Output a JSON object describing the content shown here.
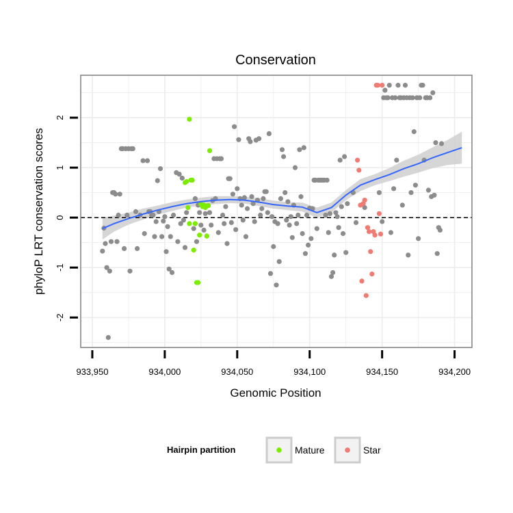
{
  "chart_data": {
    "type": "scatter",
    "title": "Conservation",
    "xlabel": "Genomic Position",
    "ylabel": "phyloP LRT conservation scores",
    "xlim": [
      933942,
      934212
    ],
    "ylim": [
      -2.6,
      2.85
    ],
    "xticks": [
      933950,
      934000,
      934050,
      934100,
      934150,
      934200
    ],
    "xtick_labels": [
      "933,950",
      "934,000",
      "934,050",
      "934,100",
      "934,150",
      "934,200"
    ],
    "yticks": [
      -2,
      -1,
      0,
      1,
      2
    ],
    "ytick_labels": [
      "-2",
      "-1",
      "0",
      "1",
      "2"
    ],
    "grid": true,
    "reference_line": {
      "y": 0,
      "style": "dashed"
    },
    "colors": {
      "other": "#8c8c8c",
      "mature": "#7cec00",
      "star": "#f07b72",
      "smooth": "#3366ff",
      "band": "#cfcfcf",
      "panel_bg": "#ffffff",
      "grid": "#ececec",
      "border": "#7f7f7f"
    },
    "legend": {
      "title": "Hairpin partition",
      "placement": "bottom",
      "entries": [
        {
          "label": "Mature",
          "color": "#7cec00"
        },
        {
          "label": "Star",
          "color": "#f07b72"
        }
      ]
    },
    "series": [
      {
        "key": "other",
        "points": [
          [
            933957,
            -0.67
          ],
          [
            933958,
            -0.21
          ],
          [
            933959,
            -0.52
          ],
          [
            933960,
            -1.0
          ],
          [
            933961,
            -2.4
          ],
          [
            933962,
            -1.07
          ],
          [
            933963,
            -0.48
          ],
          [
            933964,
            0.5
          ],
          [
            933965,
            0.5
          ],
          [
            933966,
            0.47
          ],
          [
            933967,
            -0.48
          ],
          [
            933968,
            0.05
          ],
          [
            933969,
            0.47
          ],
          [
            933970,
            1.38
          ],
          [
            933971,
            1.38
          ],
          [
            933972,
            -0.62
          ],
          [
            933973,
            1.38
          ],
          [
            933974,
            0.05
          ],
          [
            933975,
            1.38
          ],
          [
            933976,
            -1.07
          ],
          [
            933977,
            1.38
          ],
          [
            933978,
            1.38
          ],
          [
            933980,
            0.12
          ],
          [
            933981,
            -0.62
          ],
          [
            933983,
            0.05
          ],
          [
            933985,
            1.14
          ],
          [
            933986,
            -0.32
          ],
          [
            933988,
            1.14
          ],
          [
            933989,
            0.12
          ],
          [
            933990,
            0.12
          ],
          [
            933991,
            0.05
          ],
          [
            933992,
            0.05
          ],
          [
            933993,
            -0.38
          ],
          [
            933994,
            -0.08
          ],
          [
            933995,
            0.74
          ],
          [
            933996,
            0.12
          ],
          [
            933997,
            0.98
          ],
          [
            933998,
            -0.38
          ],
          [
            933999,
            -0.07
          ],
          [
            934000,
            0.02
          ],
          [
            934001,
            -0.68
          ],
          [
            934002,
            -0.18
          ],
          [
            934003,
            -1.03
          ],
          [
            934004,
            -0.38
          ],
          [
            934005,
            -1.1
          ],
          [
            934006,
            0.05
          ],
          [
            934008,
            0.9
          ],
          [
            934009,
            -0.48
          ],
          [
            934010,
            0.87
          ],
          [
            934011,
            -0.12
          ],
          [
            934012,
            0.79
          ],
          [
            934013,
            -0.05
          ],
          [
            934014,
            -0.6
          ],
          [
            934015,
            0.1
          ],
          [
            934020,
            -0.22
          ],
          [
            934021,
            0.38
          ],
          [
            934022,
            -0.48
          ],
          [
            934023,
            0.25
          ],
          [
            934024,
            0.1
          ],
          [
            934025,
            -0.15
          ],
          [
            934027,
            -0.25
          ],
          [
            934028,
            0.08
          ],
          [
            934029,
            -0.37
          ],
          [
            934030,
            0.24
          ],
          [
            934031,
            0.1
          ],
          [
            934032,
            -0.15
          ],
          [
            934033,
            0.34
          ],
          [
            934034,
            1.18
          ],
          [
            934035,
            0.38
          ],
          [
            934036,
            1.18
          ],
          [
            934037,
            -0.3
          ],
          [
            934038,
            1.18
          ],
          [
            934039,
            1.18
          ],
          [
            934040,
            0.05
          ],
          [
            934041,
            -0.12
          ],
          [
            934042,
            0.22
          ],
          [
            934043,
            -0.52
          ],
          [
            934044,
            0.78
          ],
          [
            934045,
            0.78
          ],
          [
            934046,
            -0.1
          ],
          [
            934047,
            0.47
          ],
          [
            934048,
            1.82
          ],
          [
            934049,
            -0.24
          ],
          [
            934050,
            0.58
          ],
          [
            934051,
            1.56
          ],
          [
            934052,
            0.38
          ],
          [
            934053,
            0.25
          ],
          [
            934054,
            -0.05
          ],
          [
            934055,
            0.4
          ],
          [
            934056,
            -0.38
          ],
          [
            934057,
            0.18
          ],
          [
            934058,
            1.58
          ],
          [
            934059,
            1.52
          ],
          [
            934060,
            0.42
          ],
          [
            934061,
            0.28
          ],
          [
            934062,
            -0.08
          ],
          [
            934063,
            1.55
          ],
          [
            934064,
            0.35
          ],
          [
            934065,
            1.58
          ],
          [
            934066,
            0.05
          ],
          [
            934067,
            0.18
          ],
          [
            934068,
            0.38
          ],
          [
            934069,
            0.52
          ],
          [
            934070,
            0.52
          ],
          [
            934071,
            0.1
          ],
          [
            934072,
            1.68
          ],
          [
            934073,
            -1.12
          ],
          [
            934074,
            0.02
          ],
          [
            934075,
            -0.58
          ],
          [
            934076,
            -0.08
          ],
          [
            934077,
            -1.35
          ],
          [
            934078,
            -0.12
          ],
          [
            934079,
            -0.88
          ],
          [
            934080,
            0.38
          ],
          [
            934081,
            1.36
          ],
          [
            934082,
            1.22
          ],
          [
            934083,
            0.5
          ],
          [
            934084,
            -0.05
          ],
          [
            934085,
            0.32
          ],
          [
            934086,
            -0.15
          ],
          [
            934087,
            0.02
          ],
          [
            934088,
            -0.4
          ],
          [
            934089,
            0.25
          ],
          [
            934090,
            1.0
          ],
          [
            934091,
            -0.12
          ],
          [
            934092,
            0.05
          ],
          [
            934093,
            1.36
          ],
          [
            934094,
            0.42
          ],
          [
            934095,
            -0.32
          ],
          [
            934096,
            1.4
          ],
          [
            934097,
            -0.72
          ],
          [
            934098,
            0.05
          ],
          [
            934099,
            -0.55
          ],
          [
            934100,
            0.19
          ],
          [
            934101,
            -0.42
          ],
          [
            934102,
            0.18
          ],
          [
            934103,
            0.75
          ],
          [
            934104,
            0.75
          ],
          [
            934105,
            -0.22
          ],
          [
            934106,
            0.75
          ],
          [
            934107,
            0.75
          ],
          [
            934108,
            0.75
          ],
          [
            934109,
            0.75
          ],
          [
            934110,
            0.75
          ],
          [
            934111,
            0.05
          ],
          [
            934112,
            0.75
          ],
          [
            934113,
            -0.3
          ],
          [
            934114,
            0.08
          ],
          [
            934115,
            -1.18
          ],
          [
            934116,
            -1.1
          ],
          [
            934117,
            -0.75
          ],
          [
            934118,
            0.1
          ],
          [
            934119,
            0.02
          ],
          [
            934120,
            -0.2
          ],
          [
            934121,
            1.15
          ],
          [
            934122,
            0.22
          ],
          [
            934123,
            -0.32
          ],
          [
            934124,
            1.22
          ],
          [
            934125,
            -0.7
          ],
          [
            934126,
            0.28
          ],
          [
            934130,
            0.5
          ],
          [
            934132,
            -0.1
          ],
          [
            934138,
            0.2
          ],
          [
            934148,
            0.5
          ],
          [
            934150,
            -0.08
          ],
          [
            934151,
            2.4
          ],
          [
            934152,
            2.55
          ],
          [
            934153,
            2.4
          ],
          [
            934154,
            2.4
          ],
          [
            934155,
            2.65
          ],
          [
            934156,
            -0.3
          ],
          [
            934157,
            2.4
          ],
          [
            934158,
            0.58
          ],
          [
            934159,
            2.4
          ],
          [
            934160,
            1.15
          ],
          [
            934161,
            2.65
          ],
          [
            934162,
            2.4
          ],
          [
            934163,
            2.4
          ],
          [
            934164,
            0.25
          ],
          [
            934165,
            2.4
          ],
          [
            934166,
            2.65
          ],
          [
            934167,
            2.4
          ],
          [
            934168,
            -0.75
          ],
          [
            934169,
            2.4
          ],
          [
            934170,
            0.5
          ],
          [
            934171,
            2.4
          ],
          [
            934172,
            1.72
          ],
          [
            934173,
            0.65
          ],
          [
            934174,
            2.4
          ],
          [
            934175,
            -0.42
          ],
          [
            934176,
            2.4
          ],
          [
            934177,
            2.65
          ],
          [
            934178,
            2.65
          ],
          [
            934179,
            1.15
          ],
          [
            934180,
            2.4
          ],
          [
            934181,
            2.4
          ],
          [
            934182,
            0.55
          ],
          [
            934183,
            2.4
          ],
          [
            934184,
            0.42
          ],
          [
            934185,
            2.5
          ],
          [
            934186,
            0.45
          ],
          [
            934187,
            1.5
          ],
          [
            934188,
            -0.72
          ],
          [
            934189,
            -0.2
          ],
          [
            934190,
            -0.25
          ],
          [
            934191,
            1.48
          ]
        ]
      },
      {
        "key": "mature",
        "name": "Mature",
        "points": [
          [
            934014,
            0.7
          ],
          [
            934015,
            0.72
          ],
          [
            934016,
            0.2
          ],
          [
            934017,
            1.97
          ],
          [
            934018,
            0.75
          ],
          [
            934019,
            0.75
          ],
          [
            934020,
            -0.65
          ],
          [
            934021,
            -0.12
          ],
          [
            934022,
            -1.3
          ],
          [
            934023,
            -1.3
          ],
          [
            934024,
            -0.35
          ],
          [
            934025,
            0.27
          ],
          [
            934026,
            0.22
          ],
          [
            934027,
            0.25
          ],
          [
            934028,
            0.2
          ],
          [
            934029,
            -0.37
          ],
          [
            934030,
            0.24
          ],
          [
            934031,
            1.34
          ],
          [
            934017,
            -0.12
          ]
        ]
      },
      {
        "key": "star",
        "name": "Star",
        "points": [
          [
            934133,
            1.15
          ],
          [
            934134,
            0.95
          ],
          [
            934135,
            0.25
          ],
          [
            934136,
            -1.27
          ],
          [
            934137,
            0.28
          ],
          [
            934138,
            0.35
          ],
          [
            934139,
            -1.56
          ],
          [
            934140,
            -0.2
          ],
          [
            934141,
            -0.28
          ],
          [
            934142,
            -0.68
          ],
          [
            934143,
            -1.13
          ],
          [
            934144,
            -0.28
          ],
          [
            934145,
            -0.35
          ],
          [
            934146,
            2.65
          ],
          [
            934147,
            2.65
          ],
          [
            934148,
            0.08
          ],
          [
            934149,
            -0.33
          ],
          [
            934150,
            2.65
          ]
        ]
      }
    ],
    "smooth": {
      "type": "loess",
      "x": [
        933957,
        933965,
        933975,
        933985,
        933995,
        934005,
        934015,
        934025,
        934035,
        934045,
        934055,
        934065,
        934075,
        934085,
        934095,
        934105,
        934115,
        934125,
        934135,
        934145,
        934155,
        934165,
        934175,
        934185,
        934195,
        934205
      ],
      "y": [
        -0.22,
        -0.12,
        -0.02,
        0.07,
        0.15,
        0.22,
        0.28,
        0.32,
        0.35,
        0.36,
        0.35,
        0.31,
        0.26,
        0.23,
        0.21,
        0.1,
        0.2,
        0.45,
        0.65,
        0.76,
        0.86,
        0.98,
        1.08,
        1.2,
        1.3,
        1.4
      ],
      "ymin": [
        -0.44,
        -0.28,
        -0.14,
        -0.04,
        0.06,
        0.13,
        0.2,
        0.24,
        0.27,
        0.29,
        0.28,
        0.23,
        0.18,
        0.15,
        0.12,
        0.0,
        0.1,
        0.35,
        0.53,
        0.65,
        0.73,
        0.82,
        0.9,
        0.99,
        1.05,
        1.08
      ],
      "ymax": [
        0.0,
        0.04,
        0.1,
        0.18,
        0.24,
        0.31,
        0.36,
        0.4,
        0.43,
        0.43,
        0.42,
        0.39,
        0.34,
        0.31,
        0.3,
        0.2,
        0.3,
        0.55,
        0.77,
        0.87,
        0.99,
        1.14,
        1.26,
        1.41,
        1.55,
        1.72
      ]
    }
  }
}
